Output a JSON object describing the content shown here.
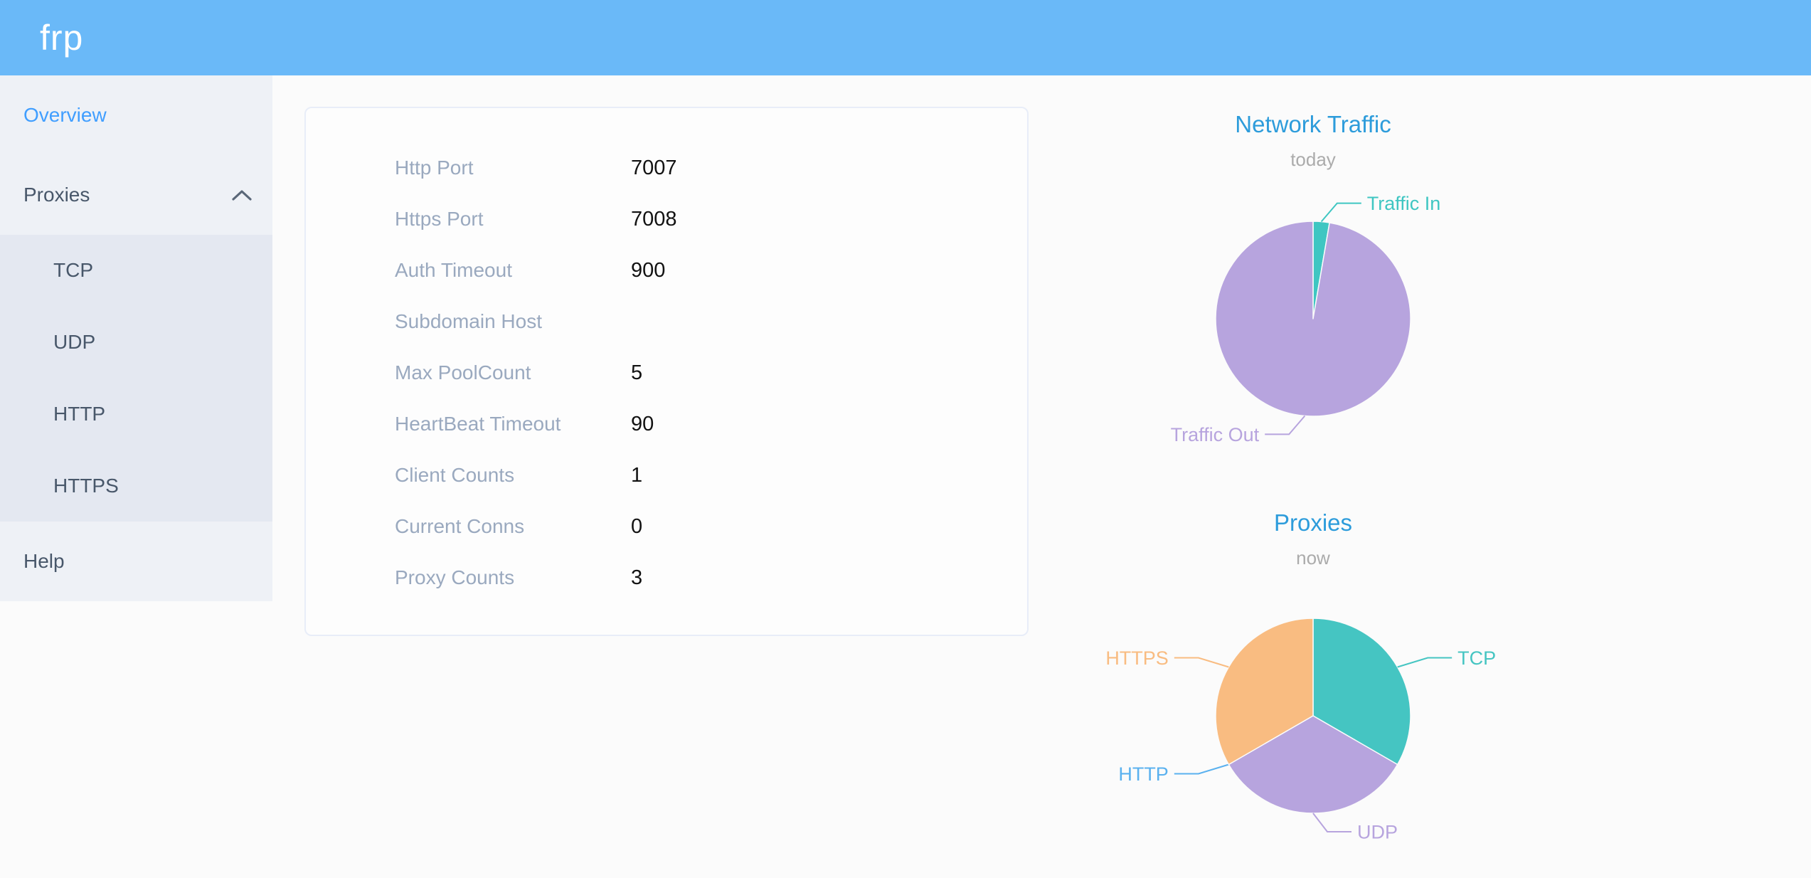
{
  "header": {
    "logo": "frp"
  },
  "sidebar": {
    "items": [
      {
        "label": "Overview",
        "selected": true
      },
      {
        "label": "Proxies",
        "expanded": true,
        "children": [
          "TCP",
          "UDP",
          "HTTP",
          "HTTPS"
        ]
      },
      {
        "label": "Help"
      }
    ]
  },
  "server_info": {
    "rows": [
      {
        "label": "Http Port",
        "value": "7007"
      },
      {
        "label": "Https Port",
        "value": "7008"
      },
      {
        "label": "Auth Timeout",
        "value": "900"
      },
      {
        "label": "Subdomain Host",
        "value": ""
      },
      {
        "label": "Max PoolCount",
        "value": "5"
      },
      {
        "label": "HeartBeat Timeout",
        "value": "90"
      },
      {
        "label": "Client Counts",
        "value": "1"
      },
      {
        "label": "Current Conns",
        "value": "0"
      },
      {
        "label": "Proxy Counts",
        "value": "3"
      }
    ]
  },
  "chart_data": [
    {
      "type": "pie",
      "title": "Network Traffic",
      "subtitle": "today",
      "legend_position": "none",
      "labels": "outside",
      "slices": [
        {
          "name": "Traffic In",
          "value": 2.7,
          "color": "#3fc6c2",
          "label_side": "right"
        },
        {
          "name": "Traffic Out",
          "value": 97.3,
          "color": "#b7a4de",
          "label_side": "left"
        }
      ],
      "values_unit": "percent (estimated from slice angles)"
    },
    {
      "type": "pie",
      "title": "Proxies",
      "subtitle": "now",
      "legend_position": "none",
      "labels": "outside",
      "slices": [
        {
          "name": "TCP",
          "value": 1,
          "color": "#45c5c2",
          "label_side": "right"
        },
        {
          "name": "UDP",
          "value": 1,
          "color": "#b7a4de",
          "label_side": "right"
        },
        {
          "name": "HTTP",
          "value": 0,
          "color": "#5ab1ef",
          "label_side": "left"
        },
        {
          "name": "HTTPS",
          "value": 1,
          "color": "#f9bc81",
          "label_side": "left"
        }
      ],
      "values_unit": "proxy count"
    }
  ],
  "colors": {
    "header_bg": "#6ab9f8",
    "sidebar_bg": "#eef1f6",
    "submenu_bg": "#e4e8f1",
    "menu_text": "#48576a",
    "menu_selected": "#409eff",
    "chart_title": "#2d9cdb",
    "card_label": "#9aa9bf",
    "page_bg": "#fbfbfb"
  }
}
